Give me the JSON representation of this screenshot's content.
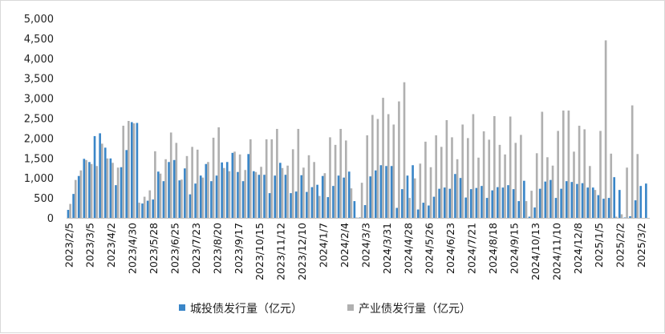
{
  "chart_data": {
    "type": "bar",
    "title": "",
    "xlabel": "",
    "ylabel": "",
    "ylim": [
      0,
      5000
    ],
    "yticks": [
      "0",
      "500",
      "1,000",
      "1,500",
      "2,000",
      "2,500",
      "3,000",
      "3,500",
      "4,000",
      "4,500",
      "5,000"
    ],
    "ytick_values": [
      0,
      500,
      1000,
      1500,
      2000,
      2500,
      3000,
      3500,
      4000,
      4500,
      5000
    ],
    "grid": false,
    "legend_position": "bottom",
    "colors": {
      "chengtou": "#3a86c8",
      "chanye": "#b0b0b0"
    },
    "x_tick_labels": [
      {
        "index": 0,
        "label": "2023/2/5"
      },
      {
        "index": 4,
        "label": "2023/3/5"
      },
      {
        "index": 8,
        "label": "2023/4/2"
      },
      {
        "index": 12,
        "label": "2023/4/30"
      },
      {
        "index": 16,
        "label": "2023/5/28"
      },
      {
        "index": 20,
        "label": "2023/6/25"
      },
      {
        "index": 24,
        "label": "2023/7/23"
      },
      {
        "index": 28,
        "label": "2023/8/20"
      },
      {
        "index": 32,
        "label": "2023/9/17"
      },
      {
        "index": 36,
        "label": "2023/10/15"
      },
      {
        "index": 40,
        "label": "2023/11/12"
      },
      {
        "index": 44,
        "label": "2023/12/10"
      },
      {
        "index": 48,
        "label": "2024/1/7"
      },
      {
        "index": 52,
        "label": "2024/2/4"
      },
      {
        "index": 56,
        "label": "2024/3/3"
      },
      {
        "index": 60,
        "label": "2024/3/31"
      },
      {
        "index": 64,
        "label": "2024/4/28"
      },
      {
        "index": 68,
        "label": "2024/5/26"
      },
      {
        "index": 72,
        "label": "2024/6/23"
      },
      {
        "index": 76,
        "label": "2024/7/21"
      },
      {
        "index": 80,
        "label": "2024/8/18"
      },
      {
        "index": 84,
        "label": "2024/9/15"
      },
      {
        "index": 88,
        "label": "2024/10/13"
      },
      {
        "index": 92,
        "label": "2024/11/10"
      },
      {
        "index": 96,
        "label": "2024/12/8"
      },
      {
        "index": 100,
        "label": "2025/1/5"
      },
      {
        "index": 104,
        "label": "2025/2/2"
      },
      {
        "index": 108,
        "label": "2025/3/2"
      }
    ],
    "series": [
      {
        "name": "城投债发行量（亿元）",
        "values": [
          200,
          600,
          1050,
          1480,
          1400,
          2050,
          2120,
          1760,
          1490,
          820,
          1270,
          1700,
          2400,
          2380,
          360,
          430,
          460,
          1160,
          920,
          1400,
          1450,
          940,
          1240,
          590,
          860,
          1060,
          1350,
          920,
          1060,
          1390,
          1400,
          1630,
          1150,
          920,
          1600,
          1170,
          1080,
          1080,
          620,
          1060,
          1380,
          1080,
          620,
          660,
          1070,
          650,
          770,
          830,
          1050,
          520,
          800,
          1060,
          1010,
          1160,
          420,
          10,
          320,
          1040,
          1190,
          1320,
          1300,
          1300,
          250,
          720,
          1060,
          1320,
          210,
          380,
          310,
          530,
          730,
          760,
          730,
          1100,
          1000,
          510,
          720,
          750,
          800,
          500,
          690,
          770,
          760,
          820,
          720,
          420,
          930,
          30,
          260,
          730,
          910,
          950,
          500,
          730,
          920,
          900,
          850,
          870,
          760,
          760,
          570,
          480,
          500,
          1020,
          700,
          10,
          40,
          440,
          800,
          860
        ],
        "color": "#3a86c8"
      },
      {
        "name": "产业债发行量（亿元）",
        "values": [
          350,
          950,
          1190,
          1450,
          1350,
          1300,
          1860,
          1490,
          1380,
          1260,
          2310,
          2430,
          2370,
          380,
          530,
          690,
          1670,
          1110,
          1470,
          2140,
          1880,
          960,
          1550,
          1780,
          1710,
          1010,
          1400,
          2010,
          2270,
          1250,
          1170,
          1660,
          1590,
          1200,
          1970,
          1150,
          1280,
          1970,
          1970,
          2230,
          1250,
          1310,
          1720,
          2230,
          1260,
          1570,
          1400,
          550,
          1120,
          2020,
          1830,
          2230,
          1940,
          740,
          10,
          880,
          2070,
          2580,
          2480,
          3010,
          2600,
          2340,
          2920,
          3400,
          500,
          990,
          1360,
          1910,
          1270,
          2070,
          1780,
          2450,
          2020,
          1470,
          2340,
          2000,
          2600,
          1510,
          2170,
          1960,
          2550,
          1830,
          1590,
          2540,
          1880,
          2080,
          420,
          680,
          1620,
          2660,
          1520,
          1310,
          2180,
          2690,
          2690,
          1660,
          2310,
          2220,
          1300,
          700,
          2180,
          4450,
          1610,
          30,
          90,
          1260,
          2820,
          1600
        ],
        "color": "#b0b0b0"
      }
    ]
  }
}
